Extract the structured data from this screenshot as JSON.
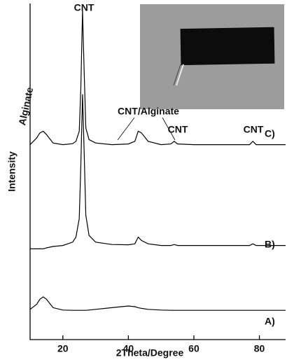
{
  "chart_data": {
    "type": "line",
    "xlabel": "2Theta/Degree",
    "ylabel": "Intensity",
    "x": [
      10,
      12,
      13,
      14,
      15,
      17,
      20,
      23,
      24,
      25,
      25.5,
      26,
      26.5,
      27,
      28,
      30,
      35,
      40,
      42,
      43,
      44,
      46,
      50,
      53,
      54,
      55,
      60,
      70,
      77,
      78,
      79,
      85,
      88
    ],
    "series": [
      {
        "name": "C)",
        "color": "#000000",
        "values": [
          58,
          60,
          61.5,
          62,
          61,
          58.5,
          58,
          58.3,
          59,
          62,
          75,
          98,
          80,
          63,
          59.5,
          58.5,
          58,
          58.2,
          59,
          62,
          61.5,
          59,
          58,
          58.2,
          59,
          58.2,
          58,
          58,
          58,
          59,
          58,
          58,
          58
        ]
      },
      {
        "name": "B)",
        "color": "#000000",
        "values": [
          27,
          27,
          27,
          27,
          27.3,
          27.7,
          28,
          29,
          30.5,
          36,
          52,
          73,
          56,
          37,
          31,
          29,
          28.3,
          28.2,
          28.5,
          30.5,
          29.5,
          28.5,
          28,
          28,
          28.3,
          28,
          28,
          28,
          28,
          28.5,
          28,
          28,
          28
        ]
      },
      {
        "name": "A)",
        "color": "#000000",
        "values": [
          9,
          10.5,
          12,
          12.7,
          12,
          9.5,
          8.8,
          8.7,
          8.7,
          8.7,
          8.7,
          8.7,
          8.7,
          8.7,
          8.8,
          9,
          9.5,
          10,
          9.8,
          9.5,
          9.3,
          9,
          8.8,
          8.7,
          8.7,
          8.7,
          8.7,
          8.7,
          8.7,
          8.7,
          8.7,
          8.7,
          8.7
        ]
      }
    ],
    "annotations": [
      "Alginate",
      "CNT",
      "CNT/Alginate",
      "CNT",
      "CNT"
    ],
    "xlim": [
      10,
      88
    ],
    "xticks": [
      20,
      40,
      60,
      80
    ],
    "ylim": [
      0,
      100
    ]
  }
}
